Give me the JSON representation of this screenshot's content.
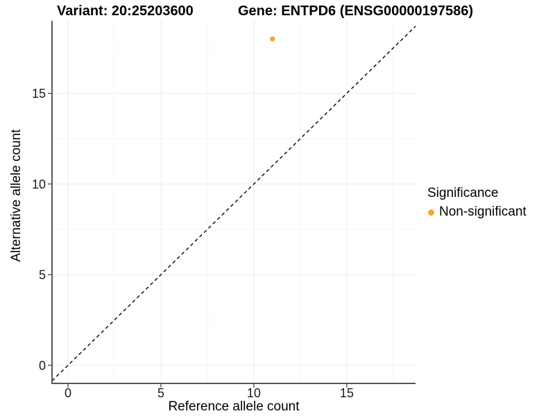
{
  "chart_data": {
    "type": "scatter",
    "title_left": "Variant: 20:25203600",
    "title_right": "Gene: ENTPD6 (ENSG00000197586)",
    "xlabel": "Reference allele count",
    "ylabel": "Alternative allele count",
    "xlim": [
      -0.86,
      18.7
    ],
    "ylim": [
      -1.0,
      19.0
    ],
    "xticks": [
      0,
      5,
      10,
      15
    ],
    "yticks": [
      0,
      5,
      10,
      15
    ],
    "minor_xticks": [
      2.5,
      7.5,
      12.5,
      17.5
    ],
    "minor_yticks": [
      2.5,
      7.5,
      12.5,
      17.5
    ],
    "grid": true,
    "series": [
      {
        "name": "Non-significant",
        "color": "#F9A432",
        "points": [
          {
            "x": 11,
            "y": 18
          }
        ]
      }
    ],
    "identity_line": {
      "style": "dashed",
      "color": "#000000",
      "from": -0.86,
      "to": 18.7
    },
    "legend": {
      "title": "Significance",
      "position": "right",
      "items": [
        {
          "label": "Non-significant",
          "color": "#F9A432"
        }
      ]
    },
    "style": {
      "background": "#FFFFFF",
      "grid_major": "#EBEBEB",
      "grid_minor": "#F5F5F5",
      "axis_line": "#555555",
      "tick_mark": "#333333",
      "tick_label": "#1A1A1A"
    }
  }
}
